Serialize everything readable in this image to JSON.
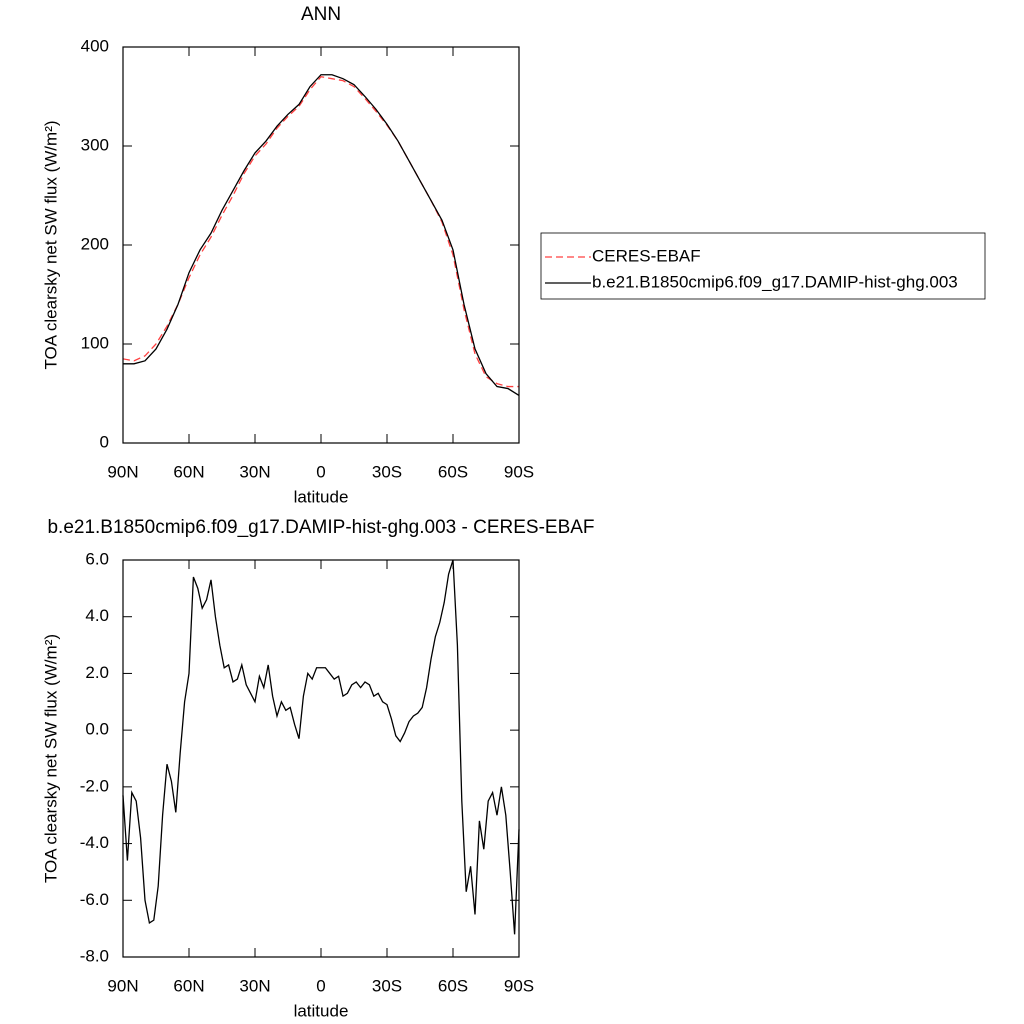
{
  "chart_data": [
    {
      "type": "line",
      "title": "ANN",
      "xlabel": "latitude",
      "ylabel": "TOA clearsky net SW flux (W/m²)",
      "x": [
        90,
        85,
        80,
        75,
        70,
        65,
        60,
        55,
        50,
        45,
        40,
        35,
        30,
        25,
        20,
        15,
        10,
        5,
        0,
        -5,
        -10,
        -15,
        -20,
        -25,
        -30,
        -35,
        -40,
        -45,
        -50,
        -55,
        -60,
        -65,
        -70,
        -75,
        -80,
        -85,
        -90
      ],
      "series": [
        {
          "name": "CERES-EBAF",
          "color": "#ff4040",
          "dash": true,
          "values": [
            85,
            83,
            88,
            100,
            118,
            140,
            167,
            190,
            208,
            230,
            250,
            272,
            290,
            302,
            318,
            330,
            340,
            357,
            370,
            368,
            366,
            360,
            348,
            335,
            321,
            305,
            285,
            265,
            245,
            223,
            190,
            135,
            90,
            67,
            60,
            57,
            57
          ]
        },
        {
          "name": "b.e21.B1850cmip6.f09_g17.DAMIP-hist-ghg.003",
          "color": "#000000",
          "dash": false,
          "values": [
            80,
            80,
            83,
            95,
            115,
            140,
            172,
            195,
            212,
            235,
            255,
            275,
            293,
            305,
            320,
            332,
            342,
            360,
            372,
            372,
            368,
            362,
            350,
            337,
            322,
            305,
            285,
            265,
            245,
            225,
            195,
            140,
            95,
            70,
            57,
            55,
            48
          ]
        }
      ],
      "xlim": [
        90,
        -90
      ],
      "xticks": [
        {
          "value": 90,
          "label": "90N"
        },
        {
          "value": 60,
          "label": "60N"
        },
        {
          "value": 30,
          "label": "30N"
        },
        0,
        {
          "value": -30,
          "label": "30S"
        },
        {
          "value": -60,
          "label": "60S"
        },
        {
          "value": -90,
          "label": "90S"
        }
      ],
      "ylim": [
        0,
        400
      ],
      "yticks": [
        0,
        100,
        200,
        300,
        400
      ],
      "legend": "right"
    },
    {
      "type": "line",
      "title": "b.e21.B1850cmip6.f09_g17.DAMIP-hist-ghg.003 - CERES-EBAF",
      "xlabel": "latitude",
      "ylabel": "TOA clearsky net SW flux (W/m²)",
      "x": [
        90,
        88,
        86,
        84,
        82,
        80,
        78,
        76,
        74,
        72,
        70,
        68,
        66,
        64,
        62,
        60,
        58,
        56,
        54,
        52,
        50,
        48,
        46,
        44,
        42,
        40,
        38,
        36,
        34,
        32,
        30,
        28,
        26,
        24,
        22,
        20,
        18,
        16,
        14,
        12,
        10,
        8,
        6,
        4,
        2,
        0,
        -2,
        -4,
        -6,
        -8,
        -10,
        -12,
        -14,
        -16,
        -18,
        -20,
        -22,
        -24,
        -26,
        -28,
        -30,
        -32,
        -34,
        -36,
        -38,
        -40,
        -42,
        -44,
        -46,
        -48,
        -50,
        -52,
        -54,
        -56,
        -58,
        -60,
        -62,
        -64,
        -66,
        -68,
        -70,
        -72,
        -74,
        -76,
        -78,
        -80,
        -82,
        -84,
        -86,
        -88,
        -90
      ],
      "series": [
        {
          "color": "#000000",
          "dash": false,
          "values": [
            -2.3,
            -4.6,
            -2.2,
            -2.5,
            -3.8,
            -6.0,
            -6.8,
            -6.7,
            -5.5,
            -3.0,
            -1.2,
            -1.8,
            -2.9,
            -0.8,
            1.0,
            2.0,
            5.4,
            5.0,
            4.3,
            4.6,
            5.3,
            4.0,
            3.0,
            2.2,
            2.3,
            1.7,
            1.8,
            2.3,
            1.6,
            1.3,
            1.0,
            1.9,
            1.5,
            2.3,
            1.2,
            0.5,
            1.0,
            0.7,
            0.8,
            0.2,
            -0.3,
            1.2,
            2.0,
            1.8,
            2.2,
            2.2,
            2.2,
            2.0,
            1.8,
            1.9,
            1.2,
            1.3,
            1.6,
            1.7,
            1.5,
            1.7,
            1.6,
            1.2,
            1.3,
            1.0,
            0.9,
            0.4,
            -0.2,
            -0.4,
            -0.1,
            0.3,
            0.5,
            0.6,
            0.8,
            1.5,
            2.5,
            3.3,
            3.8,
            4.5,
            5.5,
            6.0,
            3.0,
            -2.5,
            -5.7,
            -4.8,
            -6.5,
            -3.2,
            -4.2,
            -2.5,
            -2.2,
            -3.0,
            -2.0,
            -3.0,
            -5.0,
            -7.2,
            -3.5
          ]
        }
      ],
      "xlim": [
        90,
        -90
      ],
      "xticks": [
        {
          "value": 90,
          "label": "90N"
        },
        {
          "value": 60,
          "label": "60N"
        },
        {
          "value": 30,
          "label": "30N"
        },
        0,
        {
          "value": -30,
          "label": "30S"
        },
        {
          "value": -60,
          "label": "60S"
        },
        {
          "value": -90,
          "label": "90S"
        }
      ],
      "ylim": [
        -8,
        6
      ],
      "yticks": [
        {
          "value": -8,
          "label": "-8.0"
        },
        {
          "value": -6,
          "label": "-6.0"
        },
        {
          "value": -4,
          "label": "-4.0"
        },
        {
          "value": -2,
          "label": "-2.0"
        },
        {
          "value": 0,
          "label": "0.0"
        },
        {
          "value": 2,
          "label": "2.0"
        },
        {
          "value": 4,
          "label": "4.0"
        },
        {
          "value": 6,
          "label": "6.0"
        }
      ]
    }
  ]
}
